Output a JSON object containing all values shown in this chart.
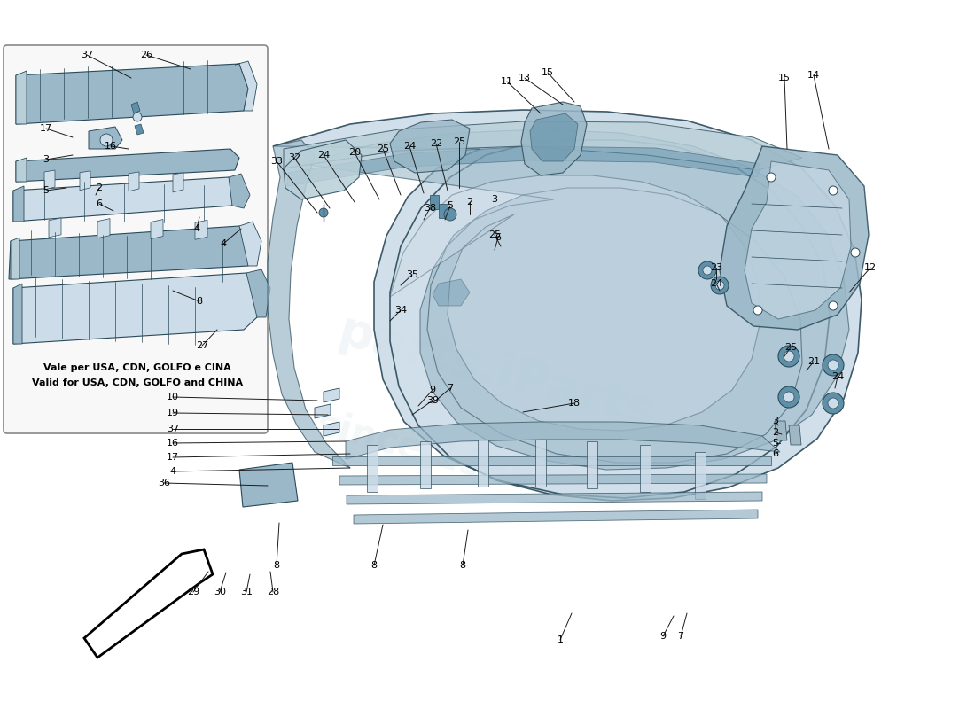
{
  "bg": "#ffffff",
  "pc1": "#b8cfd8",
  "pc2": "#9ab8c8",
  "pc3": "#ccdce8",
  "pc4": "#a0b8c4",
  "dark": "#6090a8",
  "outline": "#2a4a5a",
  "lc": "#1a1a1a",
  "wm1": "#d0dce4",
  "wm2": "#c8d8e0",
  "sub_it": "Vale per USA, CDN, GOLFO e CINA",
  "sub_en": "Valid for USA, CDN, GOLFO and CHINA"
}
